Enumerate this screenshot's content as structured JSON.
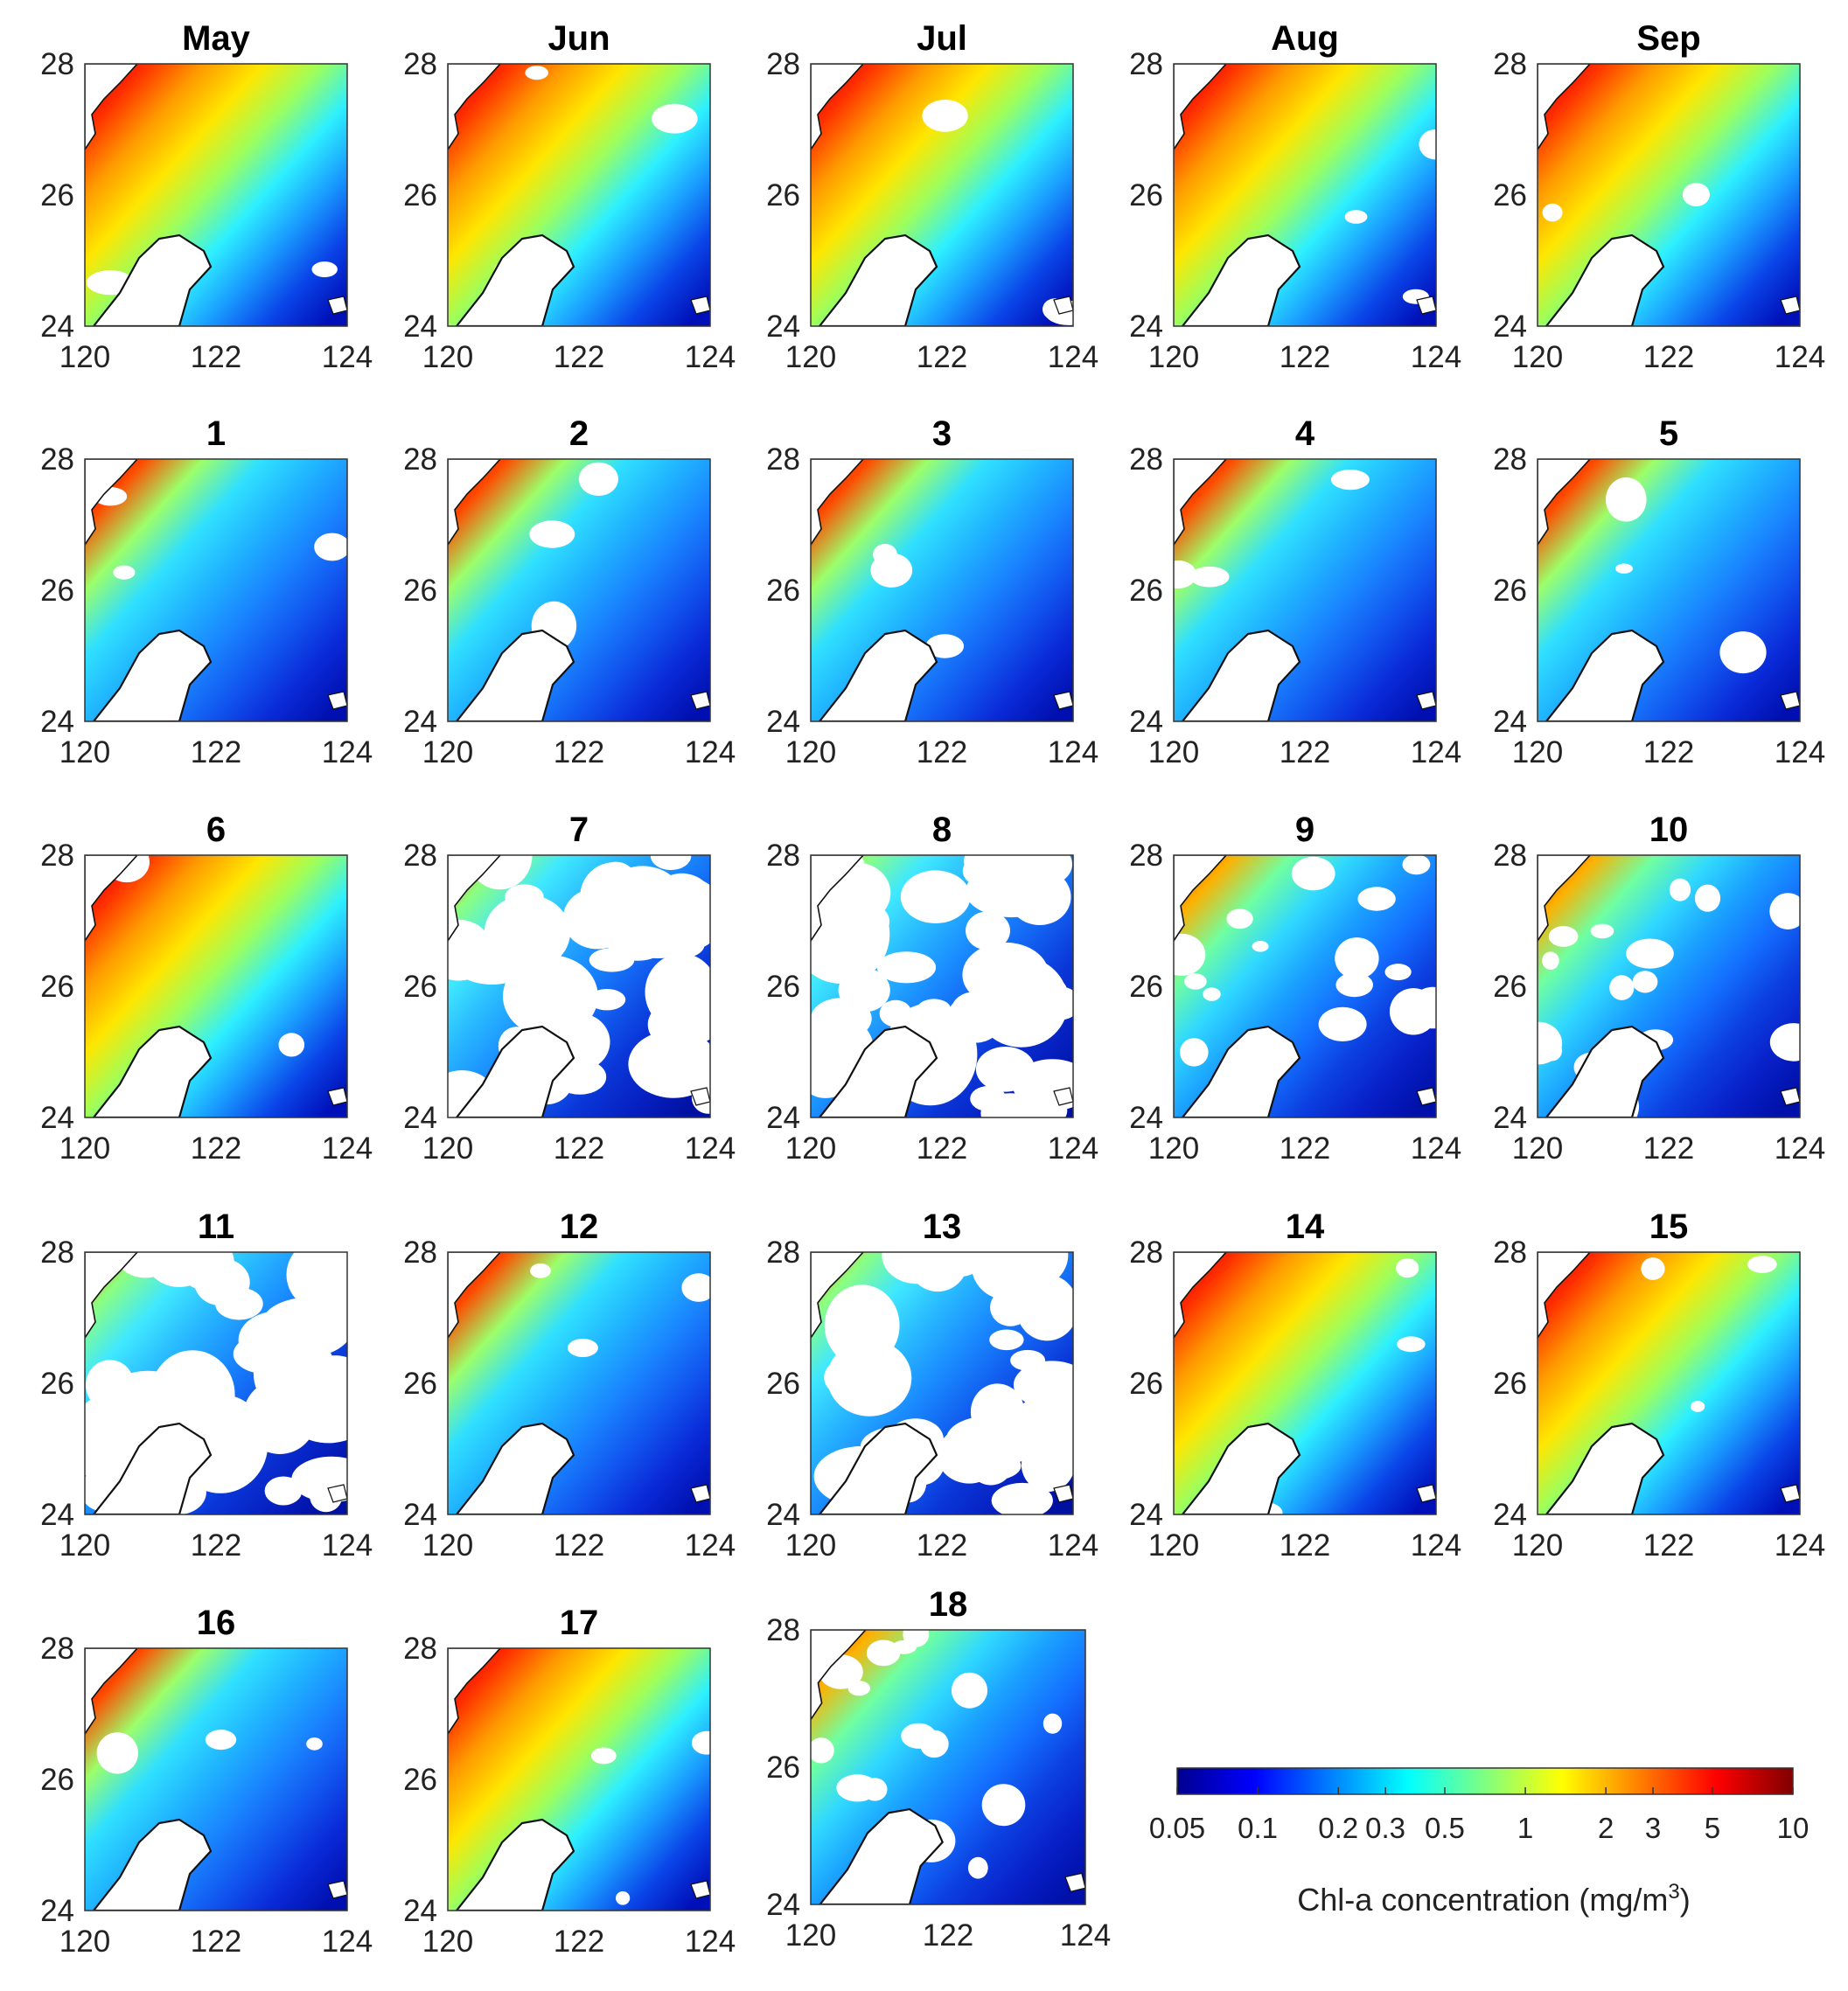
{
  "chart_data": {
    "type": "heatmap",
    "variable": "Chl-a concentration",
    "x_ticks": [
      120,
      122,
      124
    ],
    "y_ticks": [
      24,
      26,
      28
    ],
    "xlim": [
      120,
      124
    ],
    "ylim": [
      24,
      28
    ],
    "panels": [
      {
        "title": "May",
        "pattern": "high"
      },
      {
        "title": "Jun",
        "pattern": "high"
      },
      {
        "title": "Jul",
        "pattern": "high"
      },
      {
        "title": "Aug",
        "pattern": "high"
      },
      {
        "title": "Sep",
        "pattern": "high"
      },
      {
        "title": "1",
        "pattern": "mid"
      },
      {
        "title": "2",
        "pattern": "mid"
      },
      {
        "title": "3",
        "pattern": "mid"
      },
      {
        "title": "4",
        "pattern": "mid"
      },
      {
        "title": "5",
        "pattern": "mid"
      },
      {
        "title": "6",
        "pattern": "high"
      },
      {
        "title": "7",
        "pattern": "cloudy"
      },
      {
        "title": "8",
        "pattern": "cloudy"
      },
      {
        "title": "9",
        "pattern": "partly"
      },
      {
        "title": "10",
        "pattern": "partly"
      },
      {
        "title": "11",
        "pattern": "cloudy"
      },
      {
        "title": "12",
        "pattern": "mid"
      },
      {
        "title": "13",
        "pattern": "cloudy"
      },
      {
        "title": "14",
        "pattern": "high"
      },
      {
        "title": "15",
        "pattern": "high"
      },
      {
        "title": "16",
        "pattern": "mid"
      },
      {
        "title": "17",
        "pattern": "high"
      },
      {
        "title": "18",
        "pattern": "partly"
      }
    ],
    "colorbar": {
      "label": "Chl-a concentration (mg/m",
      "label_sup": "3",
      "label_close": ")",
      "scale": "log",
      "range": [
        0.05,
        10
      ],
      "ticks": [
        {
          "value": 0.05,
          "label": "0.05"
        },
        {
          "value": 0.1,
          "label": "0.1"
        },
        {
          "value": 0.2,
          "label": "0.2"
        },
        {
          "value": 0.3,
          "label": "0.3"
        },
        {
          "value": 0.5,
          "label": "0.5"
        },
        {
          "value": 1,
          "label": "1"
        },
        {
          "value": 2,
          "label": "2"
        },
        {
          "value": 3,
          "label": "3"
        },
        {
          "value": 5,
          "label": "5"
        },
        {
          "value": 10,
          "label": "10"
        }
      ],
      "colormap": "jet",
      "colors": [
        "#00008f",
        "#0000ff",
        "#0080ff",
        "#00ffff",
        "#80ff80",
        "#ffff00",
        "#ff8000",
        "#ff0000",
        "#800000"
      ]
    },
    "colors": {
      "land": "#ffffff",
      "cloud": "#ffffff",
      "axis": "#333333"
    }
  }
}
